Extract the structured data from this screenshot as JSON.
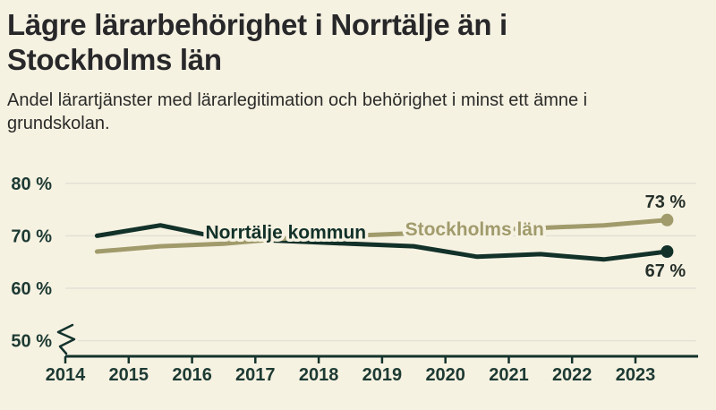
{
  "header": {
    "title": "Lägre lärarbehörighet i Norrtälje än i Stockholms län",
    "title_lines": [
      "Lägre lärarbehörighet i Norrtälje än i",
      "Stockholms län"
    ],
    "subtitle": "Andel lärartjänster med lärarlegitimation och behörighet i minst ett ämne i grundskolan.",
    "subtitle_lines": [
      "Andel lärartjänster med lärarlegitimation och behörighet i minst ett ämne i",
      "grundskolan."
    ]
  },
  "colors": {
    "background": "#f6f2e2",
    "dark_green": "#123129",
    "olive": "#a19b6c",
    "gridline": "#e3e0d4",
    "text_dark": "#28282a"
  },
  "chart_data": {
    "type": "line",
    "title": "Lägre lärarbehörighet i Norrtälje än i Stockholms län",
    "subtitle": "Andel lärartjänster med lärarlegitimation och behörighet i minst ett ämne i grundskolan.",
    "xlabel": "",
    "ylabel": "",
    "x": [
      2014.5,
      2015.5,
      2016.5,
      2017.5,
      2018.5,
      2019.5,
      2020.5,
      2021.5,
      2022.5,
      2023.5
    ],
    "x_ticks": [
      2014,
      2015,
      2016,
      2017,
      2018,
      2019,
      2020,
      2021,
      2022,
      2023
    ],
    "y_ticks": [
      {
        "label": "80 %",
        "value": 80
      },
      {
        "label": "70 %",
        "value": 70
      },
      {
        "label": "60 %",
        "value": 60
      },
      {
        "label": "50 %",
        "value": 50
      }
    ],
    "ylim": [
      50,
      83
    ],
    "axis_break_below_50": true,
    "grid": true,
    "legend_position": "inline-labels-on-lines",
    "series": [
      {
        "name": "Norrtälje kommun",
        "color": "#123129",
        "values": [
          70,
          72,
          69.5,
          69,
          68.5,
          68,
          66,
          66.5,
          65.5,
          67
        ],
        "end_label": "67 %",
        "end_label_position": "below",
        "inline_label": {
          "year": 2017.48,
          "pct": 70.7
        }
      },
      {
        "name": "Stockholms län",
        "color": "#a19b6c",
        "values": [
          67,
          68,
          68.5,
          69.5,
          70,
          70.5,
          71,
          71.5,
          72,
          73
        ],
        "end_label": "73 %",
        "end_label_position": "above",
        "inline_label": {
          "year": 2020.46,
          "pct": 71.3
        }
      }
    ]
  }
}
